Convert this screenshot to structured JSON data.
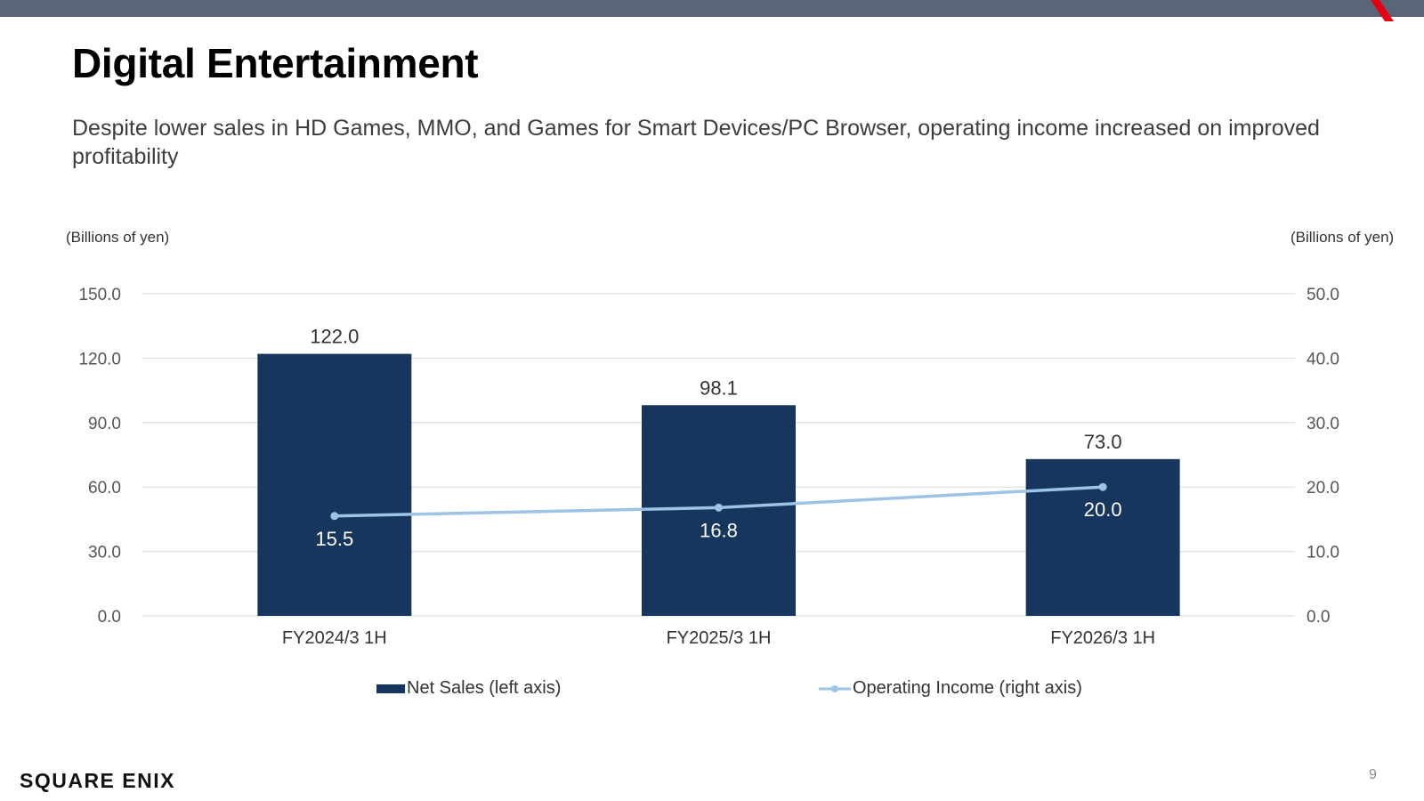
{
  "slide": {
    "title": "Digital Entertainment",
    "subtitle": "Despite lower sales in HD Games, MMO, and Games for Smart Devices/PC Browser, operating income increased on improved profitability",
    "page_number": "9",
    "brand": "SQUARE ENIX",
    "colors": {
      "top_bar": "#5a6577",
      "accent_mark": "#e60012"
    }
  },
  "chart_data": {
    "type": "bar",
    "categories": [
      "FY2024/3 1H",
      "FY2025/3 1H",
      "FY2026/3 1H"
    ],
    "left_axis": {
      "unit_label": "(Billions of yen)",
      "ylim": [
        0,
        150
      ],
      "ticks": [
        0,
        30,
        60,
        90,
        120,
        150
      ],
      "tick_labels": [
        "0.0",
        "30.0",
        "60.0",
        "90.0",
        "120.0",
        "150.0"
      ]
    },
    "right_axis": {
      "unit_label": "(Billions of yen)",
      "ylim": [
        0,
        50
      ],
      "ticks": [
        0,
        10,
        20,
        30,
        40,
        50
      ],
      "tick_labels": [
        "0.0",
        "10.0",
        "20.0",
        "30.0",
        "40.0",
        "50.0"
      ]
    },
    "grid": true,
    "legend_position": "bottom",
    "series": [
      {
        "name": "Net Sales (left axis)",
        "type": "bar",
        "axis": "left",
        "color": "#17365d",
        "values": [
          122.0,
          98.1,
          73.0
        ],
        "labels": [
          "122.0",
          "98.1",
          "73.0"
        ]
      },
      {
        "name": "Operating Income (right axis)",
        "type": "line",
        "axis": "right",
        "color": "#9dc3e6",
        "values": [
          15.5,
          16.8,
          20.0
        ],
        "labels": [
          "15.5",
          "16.8",
          "20.0"
        ]
      }
    ]
  }
}
